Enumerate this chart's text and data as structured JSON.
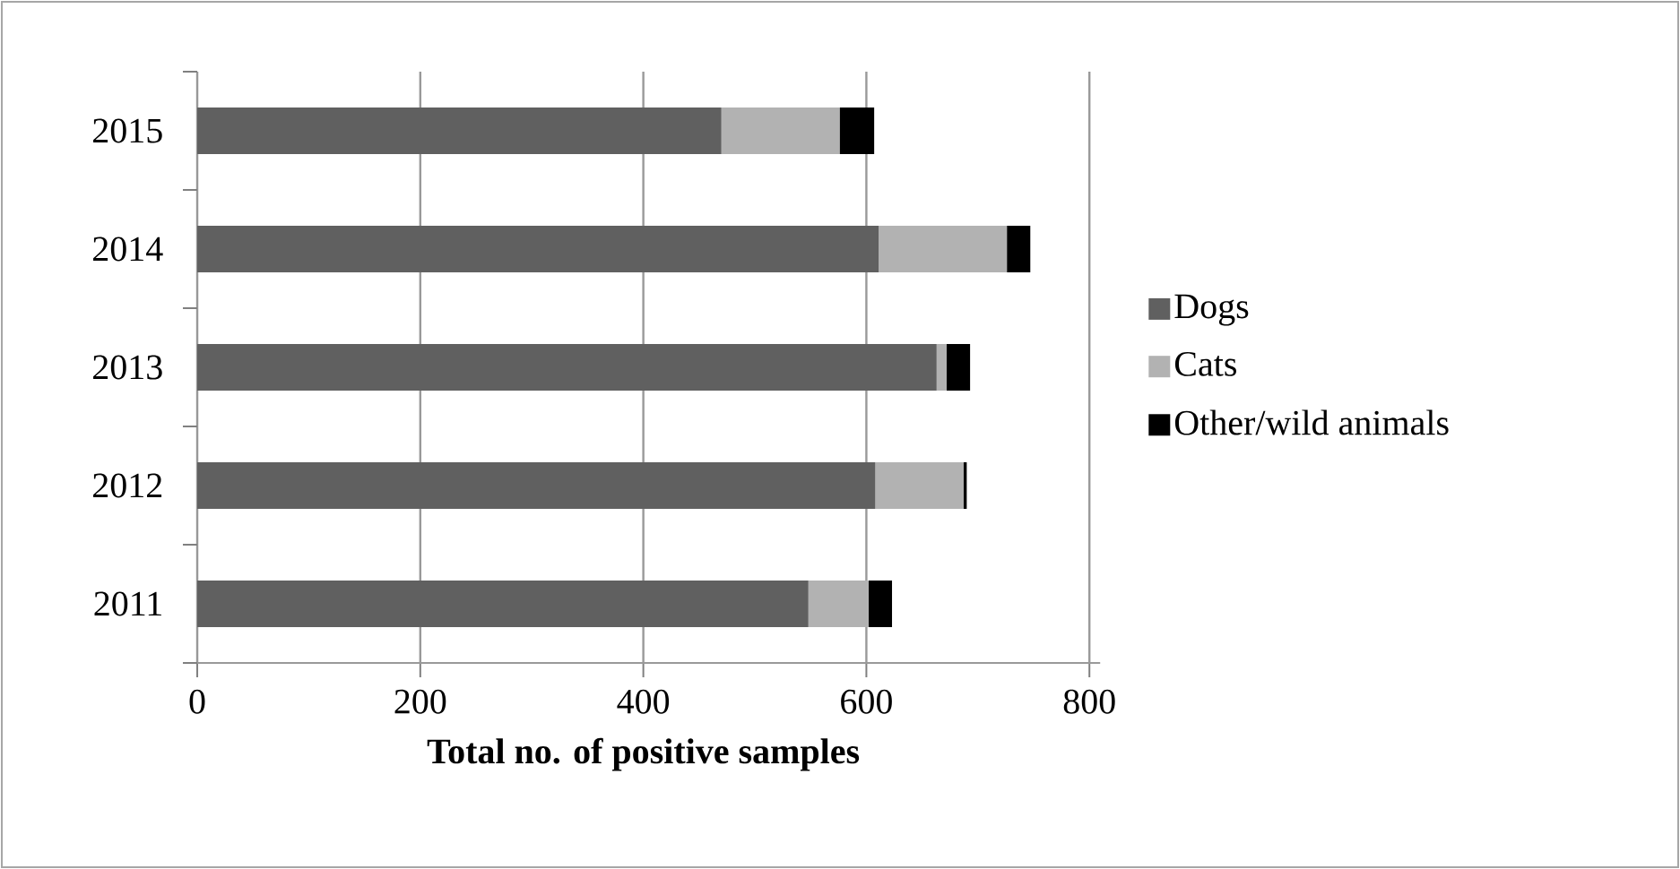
{
  "chart_data": {
    "type": "bar",
    "orientation": "horizontal",
    "stacked": true,
    "categories": [
      "2015",
      "2014",
      "2013",
      "2012",
      "2011"
    ],
    "series": [
      {
        "name": "Dogs",
        "color": "#606060",
        "values": [
          470,
          611,
          663,
          608,
          548
        ]
      },
      {
        "name": "Cats",
        "color": "#b2b2b2",
        "values": [
          106,
          115,
          9,
          79,
          54
        ]
      },
      {
        "name": "Other/wild animals",
        "color": "#000000",
        "values": [
          31,
          21,
          21,
          3,
          21
        ]
      }
    ],
    "xlabel": "Total no. of positive samples",
    "xlim": [
      0,
      800
    ],
    "xticks": [
      0,
      200,
      400,
      600,
      800
    ],
    "grid": "x",
    "legend": "right"
  }
}
